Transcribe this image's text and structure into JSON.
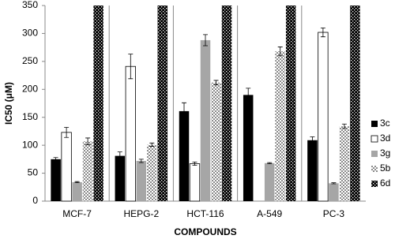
{
  "chart_data": {
    "type": "bar",
    "x_label": "COMPOUNDS",
    "y_label": "IC50 (μM)",
    "categories": [
      "MCF-7",
      "HEPG-2",
      "HCT-116",
      "A-549",
      "PC-3"
    ],
    "series": [
      {
        "name": "3c",
        "color": "#000000",
        "values": [
          75,
          81,
          161,
          190,
          109
        ],
        "errors": [
          3,
          7,
          15,
          12,
          6
        ]
      },
      {
        "name": "3d",
        "color": "#ffffff",
        "values": [
          123,
          241,
          67,
          null,
          302
        ],
        "errors": [
          9,
          22,
          3,
          null,
          8
        ]
      },
      {
        "name": "3g",
        "color": "#a6a6a6",
        "values": [
          34,
          72,
          288,
          68,
          32
        ],
        "errors": [
          1,
          3,
          10,
          1,
          1
        ]
      },
      {
        "name": "5b",
        "color": "#ffffff",
        "pattern": "dots",
        "values": [
          107,
          101,
          212,
          268,
          134
        ],
        "errors": [
          6,
          3,
          4,
          8,
          4
        ]
      },
      {
        "name": "6d",
        "color": "#000000",
        "pattern": "checker",
        "values": [
          350,
          350,
          350,
          350,
          350
        ]
      }
    ],
    "ylim": [
      0,
      350
    ],
    "yticks": [
      0,
      50,
      100,
      150,
      200,
      250,
      300,
      350
    ]
  }
}
